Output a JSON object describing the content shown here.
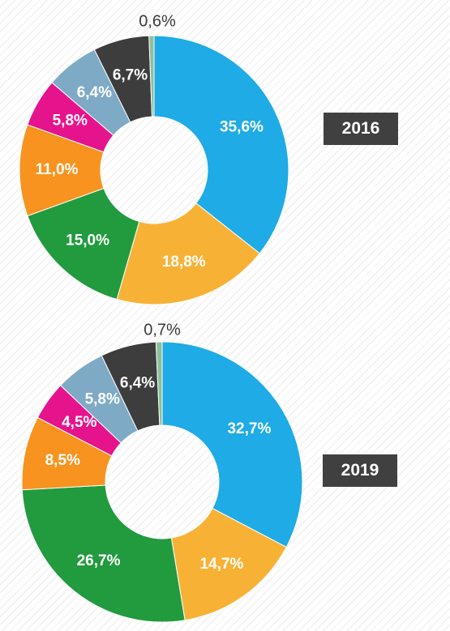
{
  "chart_data": [
    {
      "type": "pie",
      "year_label": "2016",
      "donut": true,
      "slices": [
        {
          "value": 35.6,
          "label": "35,6%",
          "color": "#1eabe6"
        },
        {
          "value": 18.8,
          "label": "18,8%",
          "color": "#f7b236"
        },
        {
          "value": 15.0,
          "label": "15,0%",
          "color": "#229a3e"
        },
        {
          "value": 11.0,
          "label": "11,0%",
          "color": "#f7931e"
        },
        {
          "value": 5.8,
          "label": "5,8%",
          "color": "#e6148c"
        },
        {
          "value": 6.4,
          "label": "6,4%",
          "color": "#7eaac6"
        },
        {
          "value": 6.7,
          "label": "6,7%",
          "color": "#3d3d3d"
        },
        {
          "value": 0.6,
          "label": "0,6%",
          "color": "#8cbf9a"
        }
      ]
    },
    {
      "type": "pie",
      "year_label": "2019",
      "donut": true,
      "slices": [
        {
          "value": 32.7,
          "label": "32,7%",
          "color": "#1eabe6"
        },
        {
          "value": 14.7,
          "label": "14,7%",
          "color": "#f7b236"
        },
        {
          "value": 26.7,
          "label": "26,7%",
          "color": "#229a3e"
        },
        {
          "value": 8.5,
          "label": "8,5%",
          "color": "#f7931e"
        },
        {
          "value": 4.5,
          "label": "4,5%",
          "color": "#e6148c"
        },
        {
          "value": 5.8,
          "label": "5,8%",
          "color": "#7eaac6"
        },
        {
          "value": 6.4,
          "label": "6,4%",
          "color": "#3d3d3d"
        },
        {
          "value": 0.7,
          "label": "0,7%",
          "color": "#8cbf9a"
        }
      ]
    }
  ]
}
